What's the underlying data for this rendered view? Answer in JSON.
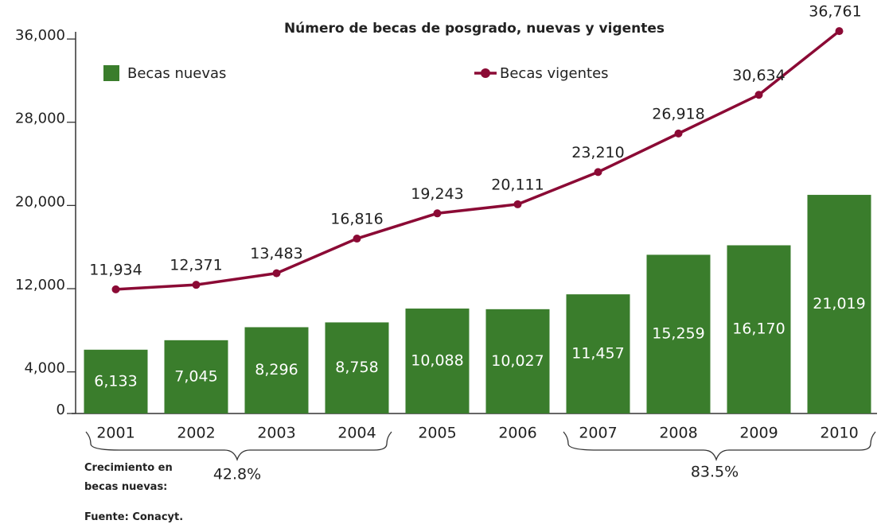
{
  "chart_data": {
    "type": "bar",
    "title": "Número de becas de posgrado, nuevas y vigentes",
    "categories": [
      "2001",
      "2002",
      "2003",
      "2004",
      "2005",
      "2006",
      "2007",
      "2008",
      "2009",
      "2010"
    ],
    "series": [
      {
        "name": "Becas nuevas",
        "type": "bar",
        "color": "#3a7d2c",
        "values": [
          6133,
          7045,
          8296,
          8758,
          10088,
          10027,
          11457,
          15259,
          16170,
          21019
        ],
        "value_labels": [
          "6,133",
          "7,045",
          "8,296",
          "8,758",
          "10,088",
          "10,027",
          "11,457",
          "15,259",
          "16,170",
          "21,019"
        ]
      },
      {
        "name": "Becas vigentes",
        "type": "line",
        "color": "#8b0a35",
        "values": [
          11934,
          12371,
          13483,
          16816,
          19243,
          20111,
          23210,
          26918,
          30634,
          36761
        ],
        "value_labels": [
          "11,934",
          "12,371",
          "13,483",
          "16,816",
          "19,243",
          "20,111",
          "23,210",
          "26,918",
          "30,634",
          "36,761"
        ]
      }
    ],
    "ylim": [
      0,
      37000
    ],
    "yticks": [
      0,
      {
        "value": 4000,
        "label": "4,000"
      },
      {
        "value": 12000,
        "label": "12,000"
      },
      {
        "value": 20000,
        "label": "20,000"
      },
      {
        "value": 28000,
        "label": "28,000"
      },
      {
        "value": 36000,
        "label": "36,000"
      }
    ],
    "growth_label": "Crecimiento en becas nuevas:",
    "growth": [
      "42.8%",
      "83.5%"
    ],
    "source": "Fuente: Conacyt."
  }
}
